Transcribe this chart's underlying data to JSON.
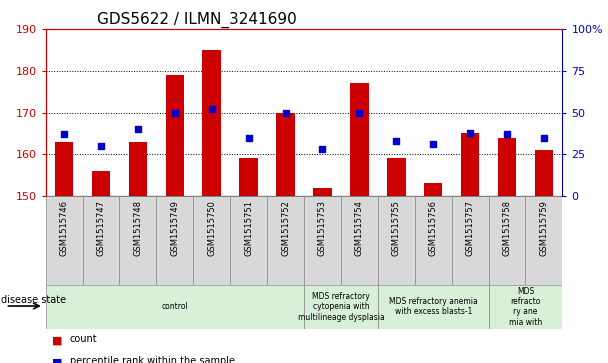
{
  "title": "GDS5622 / ILMN_3241690",
  "samples": [
    "GSM1515746",
    "GSM1515747",
    "GSM1515748",
    "GSM1515749",
    "GSM1515750",
    "GSM1515751",
    "GSM1515752",
    "GSM1515753",
    "GSM1515754",
    "GSM1515755",
    "GSM1515756",
    "GSM1515757",
    "GSM1515758",
    "GSM1515759"
  ],
  "counts": [
    163,
    156,
    163,
    179,
    185,
    159,
    170,
    152,
    177,
    159,
    153,
    165,
    164,
    161
  ],
  "percentile_ranks": [
    37,
    30,
    40,
    50,
    52,
    35,
    50,
    28,
    50,
    33,
    31,
    38,
    37,
    35
  ],
  "ylim_left": [
    150,
    190
  ],
  "ylim_right": [
    0,
    100
  ],
  "yticks_left": [
    150,
    160,
    170,
    180,
    190
  ],
  "yticks_right": [
    0,
    25,
    50,
    75,
    100
  ],
  "bar_color": "#cc0000",
  "dot_color": "#0000cc",
  "bar_bottom": 150,
  "disease_groups": [
    {
      "label": "control",
      "start": 0,
      "end": 7,
      "color": "#d8f0d8"
    },
    {
      "label": "MDS refractory\ncytopenia with\nmultilineage dysplasia",
      "start": 7,
      "end": 9,
      "color": "#d8f0d8"
    },
    {
      "label": "MDS refractory anemia\nwith excess blasts-1",
      "start": 9,
      "end": 12,
      "color": "#d8f0d8"
    },
    {
      "label": "MDS\nrefracto\nry ane\nmia with",
      "start": 12,
      "end": 14,
      "color": "#d8f0d8"
    }
  ],
  "legend_count_label": "count",
  "legend_percentile_label": "percentile rank within the sample",
  "disease_state_label": "disease state",
  "bg_color": "#ffffff",
  "grid_color": "#000000",
  "sample_box_color": "#d8d8d8",
  "spine_left_color": "#cc0000",
  "spine_right_color": "#0000cc",
  "bar_width": 0.5,
  "dot_size": 18,
  "title_fontsize": 11,
  "axis_label_fontsize": 8,
  "sample_fontsize": 6,
  "disease_fontsize": 5.5,
  "legend_fontsize": 7
}
